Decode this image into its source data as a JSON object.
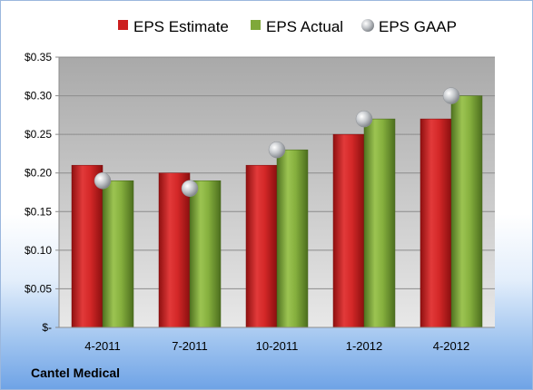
{
  "company_label": "Cantel Medical",
  "colors": {
    "estimate": "#cc1f1f",
    "actual": "#7fa83a",
    "gaap": "#b9bcc0",
    "plot_bg_top": "#a9a9a9",
    "plot_bg_bottom": "#e6e6e6"
  },
  "chart_data": {
    "type": "bar",
    "categories": [
      "4-2011",
      "7-2011",
      "10-2011",
      "1-2012",
      "4-2012"
    ],
    "series": [
      {
        "name": "EPS Estimate",
        "values": [
          0.21,
          0.2,
          0.21,
          0.25,
          0.27
        ],
        "kind": "bar"
      },
      {
        "name": "EPS Actual",
        "values": [
          0.19,
          0.19,
          0.23,
          0.27,
          0.3
        ],
        "kind": "bar"
      },
      {
        "name": "EPS GAAP",
        "values": [
          0.19,
          0.18,
          0.23,
          0.27,
          0.3
        ],
        "kind": "marker"
      }
    ],
    "yticks": [
      "$-",
      "$0.05",
      "$0.10",
      "$0.15",
      "$0.20",
      "$0.25",
      "$0.30",
      "$0.35"
    ],
    "ylim": [
      0,
      0.35
    ],
    "grid": true,
    "legend_position": "top"
  }
}
